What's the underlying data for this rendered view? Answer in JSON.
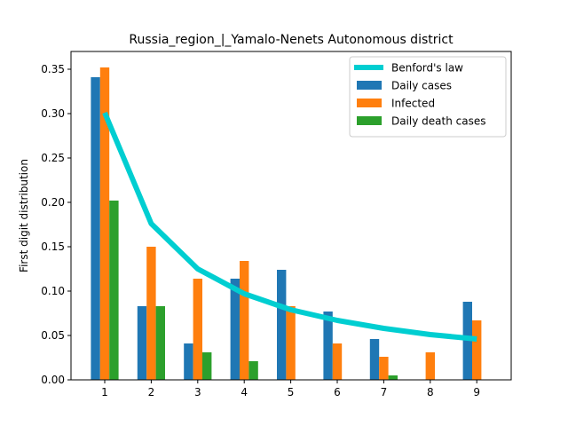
{
  "chart_data": {
    "type": "bar",
    "title": "Russia_region_|_Yamalo-Nenets Autonomous district",
    "xlabel": "",
    "ylabel": "First digit distribution",
    "categories": [
      "1",
      "2",
      "3",
      "4",
      "5",
      "6",
      "7",
      "8",
      "9"
    ],
    "ylim": [
      0,
      0.35
    ],
    "yticks": [
      "0.00",
      "0.05",
      "0.10",
      "0.15",
      "0.20",
      "0.25",
      "0.30",
      "0.35"
    ],
    "grid": false,
    "legend_position": "top-right",
    "line_series": {
      "name": "Benford's law",
      "color": "#00CED1",
      "values": [
        0.301,
        0.176,
        0.125,
        0.097,
        0.079,
        0.067,
        0.058,
        0.051,
        0.046
      ]
    },
    "series": [
      {
        "name": "Daily cases",
        "color": "#1f77b4",
        "values": [
          0.341,
          0.083,
          0.041,
          0.114,
          0.124,
          0.077,
          0.046,
          0.0,
          0.088
        ]
      },
      {
        "name": "Infected",
        "color": "#ff7f0e",
        "values": [
          0.352,
          0.15,
          0.114,
          0.134,
          0.083,
          0.041,
          0.026,
          0.031,
          0.067
        ]
      },
      {
        "name": "Daily death cases",
        "color": "#2ca02c",
        "values": [
          0.202,
          0.083,
          0.031,
          0.021,
          0.0,
          0.0,
          0.005,
          0.0,
          0.0
        ]
      }
    ]
  }
}
